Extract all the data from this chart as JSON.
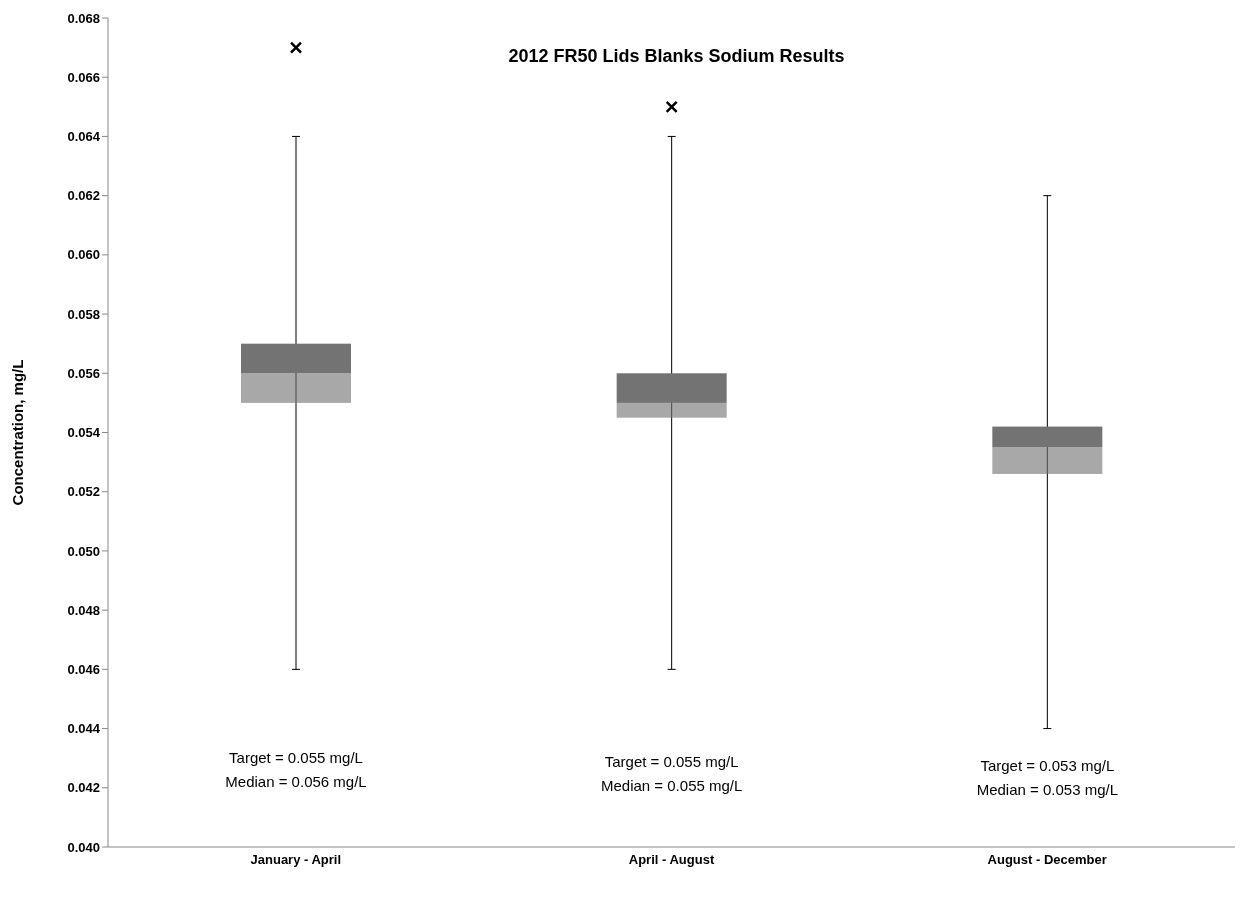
{
  "chart_data": {
    "type": "box",
    "title": "2012 FR50 Lids Blanks Sodium Results",
    "ylabel": "Concentration, mg/L",
    "categories": [
      "January - April",
      "April - August",
      "August - December"
    ],
    "boxes": [
      {
        "low": 0.046,
        "q1": 0.055,
        "median": 0.056,
        "q3": 0.057,
        "high": 0.064,
        "outliers": [
          0.067
        ]
      },
      {
        "low": 0.046,
        "q1": 0.0545,
        "median": 0.055,
        "q3": 0.056,
        "high": 0.064,
        "outliers": [
          0.065
        ]
      },
      {
        "low": 0.044,
        "q1": 0.0526,
        "median": 0.0535,
        "q3": 0.0542,
        "high": 0.062
      }
    ],
    "colors": [
      "#737373",
      "#737373",
      "#737373"
    ],
    "marker": "cross",
    "ylim": [
      0.04,
      0.068
    ],
    "yticks": [
      {
        "value": 0.04,
        "label": "0.040"
      },
      {
        "value": 0.042,
        "label": "0.042"
      },
      {
        "value": 0.044,
        "label": "0.044"
      },
      {
        "value": 0.046,
        "label": "0.046"
      },
      {
        "value": 0.048,
        "label": "0.048"
      },
      {
        "value": 0.05,
        "label": "0.050"
      },
      {
        "value": 0.052,
        "label": "0.052"
      },
      {
        "value": 0.054,
        "label": "0.054"
      },
      {
        "value": 0.056,
        "label": "0.056"
      },
      {
        "value": 0.058,
        "label": "0.058"
      },
      {
        "value": 0.06,
        "label": "0.060"
      },
      {
        "value": 0.062,
        "label": "0.062"
      },
      {
        "value": 0.064,
        "label": "0.064"
      },
      {
        "value": 0.066,
        "label": "0.066"
      },
      {
        "value": 0.068,
        "label": "0.068"
      }
    ],
    "annotations": [
      "Target = 0.055 mg/L",
      "Median = 0.056 mg/L",
      "Target = 0.055 mg/L",
      "Median = 0.055 mg/L",
      "Target = 0.053 mg/L",
      "Median = 0.053 mg/L"
    ]
  }
}
